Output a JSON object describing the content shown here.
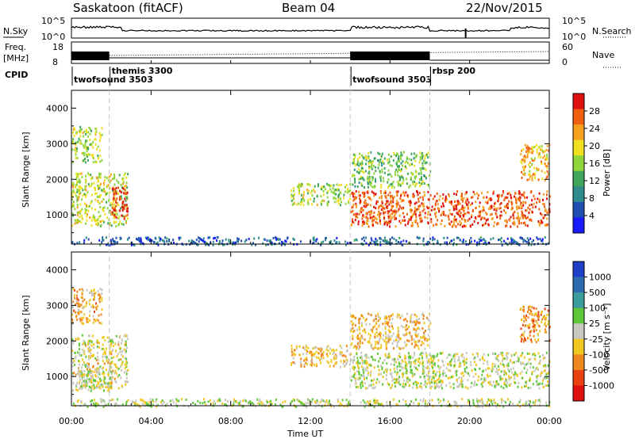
{
  "header": {
    "station": "Saskatoon (fitACF)",
    "beam": "Beam 04",
    "date": "22/Nov/2015"
  },
  "top_panel": {
    "left_label": "N.Sky",
    "left_ticks": [
      "10^5",
      "10^0"
    ],
    "right_label": "N.Search",
    "right_ticks": [
      "10^5",
      "10^0"
    ]
  },
  "freq_panel": {
    "left_label_line1": "Freq.",
    "left_label_line2": "[MHz]",
    "left_ticks": [
      "18",
      "8"
    ],
    "right_label": "Nave",
    "right_ticks": [
      "60",
      "0"
    ]
  },
  "cpid_panel": {
    "label": "CPID",
    "programs": [
      {
        "name": "twofsound 3503",
        "start_hour": 0.0
      },
      {
        "name": "themis 3300",
        "start_hour": 1.9
      },
      {
        "name": "twofsound 3503",
        "start_hour": 14.0
      },
      {
        "name": "rbsp 200",
        "start_hour": 18.0
      }
    ]
  },
  "x_axis": {
    "label": "Time UT",
    "ticks": [
      "00:00",
      "04:00",
      "08:00",
      "12:00",
      "16:00",
      "20:00",
      "00:00"
    ],
    "tick_hours": [
      0,
      4,
      8,
      12,
      16,
      20,
      24
    ],
    "range_hours": [
      0,
      24
    ]
  },
  "y_axis": {
    "label": "Slant Range [km]",
    "ticks": [
      "1000",
      "2000",
      "3000",
      "4000"
    ],
    "tick_values": [
      1000,
      2000,
      3000,
      4000
    ],
    "range_km": [
      180,
      4500
    ]
  },
  "power_colorbar": {
    "label": "Power [dB]",
    "ticks": [
      "4",
      "8",
      "12",
      "16",
      "20",
      "24",
      "28"
    ],
    "colors": [
      "#1a1aff",
      "#1f4fb0",
      "#2e8c8c",
      "#3fa65a",
      "#8fd63c",
      "#f0e020",
      "#f7a020",
      "#f06010",
      "#e01010"
    ]
  },
  "velocity_colorbar": {
    "label": "Velocity [m s⁻¹]",
    "ticks": [
      "1000",
      "500",
      "100",
      "25",
      "-25",
      "-100",
      "-500",
      "-1000"
    ],
    "colors": [
      "#1f3fc8",
      "#2e6cb0",
      "#3a9c9c",
      "#5ec83a",
      "#c8c8c0",
      "#f0c820",
      "#f08820",
      "#e84010",
      "#e01010"
    ]
  },
  "chart_data": [
    {
      "type": "heatmap",
      "title": "Power",
      "xlabel": "Time UT",
      "ylabel": "Slant Range [km]",
      "xlim_hours": [
        0,
        24
      ],
      "ylim_km": [
        180,
        4500
      ],
      "colorbar": {
        "label": "Power [dB]",
        "range": [
          0,
          30
        ]
      },
      "echo_regions": [
        {
          "t0": 0.0,
          "t1": 2.8,
          "r0": 700,
          "r1": 2200,
          "value_db": 17
        },
        {
          "t0": 2.0,
          "t1": 2.8,
          "r0": 900,
          "r1": 1800,
          "value_db": 28
        },
        {
          "t0": 0.0,
          "t1": 1.5,
          "r0": 2500,
          "r1": 3500,
          "value_db": 16
        },
        {
          "t0": 11.0,
          "t1": 14.0,
          "r0": 1300,
          "r1": 1900,
          "value_db": 16
        },
        {
          "t0": 14.0,
          "t1": 24.0,
          "r0": 700,
          "r1": 1700,
          "value_db": 25
        },
        {
          "t0": 14.0,
          "t1": 18.0,
          "r0": 1800,
          "r1": 2800,
          "value_db": 14
        },
        {
          "t0": 22.5,
          "t1": 24.0,
          "r0": 2000,
          "r1": 3000,
          "value_db": 20
        },
        {
          "t0": 0.0,
          "t1": 24.0,
          "r0": 180,
          "r1": 400,
          "value_db": 6
        }
      ]
    },
    {
      "type": "heatmap",
      "title": "Velocity",
      "xlabel": "Time UT",
      "ylabel": "Slant Range [km]",
      "xlim_hours": [
        0,
        24
      ],
      "ylim_km": [
        180,
        4500
      ],
      "colorbar": {
        "label": "Velocity [m s⁻¹]",
        "range": [
          -1000,
          1000
        ]
      },
      "echo_regions": [
        {
          "t0": 0.0,
          "t1": 2.8,
          "r0": 700,
          "r1": 2200,
          "value_ms": -80
        },
        {
          "t0": 0.0,
          "t1": 2.0,
          "r0": 600,
          "r1": 1200,
          "value_ms": 0
        },
        {
          "t0": 0.0,
          "t1": 1.5,
          "r0": 2500,
          "r1": 3500,
          "value_ms": -300
        },
        {
          "t0": 11.0,
          "t1": 14.0,
          "r0": 1300,
          "r1": 1900,
          "value_ms": -200
        },
        {
          "t0": 14.0,
          "t1": 24.0,
          "r0": 700,
          "r1": 1700,
          "value_ms": 0
        },
        {
          "t0": 14.0,
          "t1": 18.0,
          "r0": 1800,
          "r1": 2800,
          "value_ms": -250
        },
        {
          "t0": 22.5,
          "t1": 24.0,
          "r0": 2000,
          "r1": 3000,
          "value_ms": -400
        },
        {
          "t0": 0.0,
          "t1": 24.0,
          "r0": 180,
          "r1": 400,
          "value_ms": 0
        }
      ]
    }
  ]
}
